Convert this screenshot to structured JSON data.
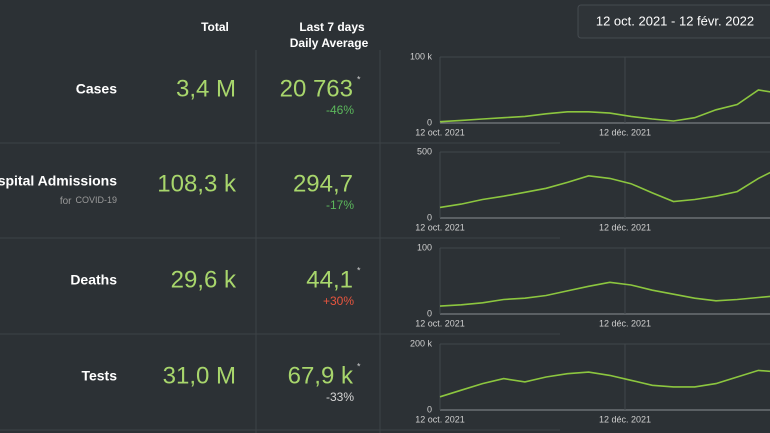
{
  "date_range": "12 oct. 2021 - 12 févr. 2022",
  "header": {
    "total": "Total",
    "last7": "Last 7 days",
    "daily_average": "Daily Average"
  },
  "rows": [
    {
      "label": "Cases",
      "total": "3,4 M",
      "average": "20 763",
      "mark": "*",
      "change": "-46%",
      "change_color": "#5cb85c"
    },
    {
      "label": "Hospital Admissions",
      "sublabel_prefix": "for",
      "sublabel": "COVID-19",
      "total": "108,3 k",
      "average": "294,7",
      "change": "-17%",
      "change_color": "#5cb85c"
    },
    {
      "label": "Deaths",
      "total": "29,6 k",
      "average": "44,1",
      "mark": "*",
      "change": "+30%",
      "change_color": "#e8553e"
    },
    {
      "label": "Tests",
      "total": "31,0 M",
      "average": "67,9 k",
      "mark": "*",
      "change": "-33%",
      "change_color": "#d6d6d6"
    }
  ],
  "chart_data": [
    {
      "type": "line",
      "color": "#8cc63f",
      "grid": true,
      "x": [
        "2021-10-12",
        "2021-10-19",
        "2021-10-26",
        "2021-11-02",
        "2021-11-09",
        "2021-11-16",
        "2021-11-23",
        "2021-11-30",
        "2021-12-07",
        "2021-12-14",
        "2021-12-21",
        "2021-12-28",
        "2022-01-04",
        "2022-01-11",
        "2022-01-18",
        "2022-01-25",
        "2022-02-01",
        "2022-02-08"
      ],
      "values": [
        2000,
        4000,
        6000,
        8000,
        10000,
        14000,
        17000,
        17000,
        15000,
        10000,
        6000,
        3000,
        8000,
        20000,
        28000,
        50000,
        45000,
        38000
      ],
      "xlim": [
        "2021-10-12",
        "2022-02-12"
      ],
      "xticks": [
        {
          "value": "2021-10-12",
          "label": "12 oct. 2021"
        },
        {
          "value": "2021-12-12",
          "label": "12 déc. 2021"
        }
      ],
      "ylim": [
        0,
        100000
      ],
      "yticks": [
        0,
        {
          "value": 100000,
          "label": "100 k"
        }
      ]
    },
    {
      "type": "line",
      "color": "#8cc63f",
      "grid": true,
      "x": [
        "2021-10-12",
        "2021-10-19",
        "2021-10-26",
        "2021-11-02",
        "2021-11-09",
        "2021-11-16",
        "2021-11-23",
        "2021-11-30",
        "2021-12-07",
        "2021-12-14",
        "2021-12-21",
        "2021-12-28",
        "2022-01-04",
        "2022-01-11",
        "2022-01-18",
        "2022-01-25",
        "2022-02-01",
        "2022-02-08"
      ],
      "values": [
        80,
        105,
        140,
        165,
        195,
        225,
        270,
        320,
        300,
        260,
        190,
        125,
        140,
        165,
        200,
        300,
        380,
        400
      ],
      "xlim": [
        "2021-10-12",
        "2022-02-12"
      ],
      "xticks": [
        {
          "value": "2021-10-12",
          "label": "12 oct. 2021"
        },
        {
          "value": "2021-12-12",
          "label": "12 déc. 2021"
        }
      ],
      "ylim": [
        0,
        500
      ],
      "yticks": [
        0,
        500
      ]
    },
    {
      "type": "line",
      "color": "#8cc63f",
      "grid": true,
      "x": [
        "2021-10-12",
        "2021-10-19",
        "2021-10-26",
        "2021-11-02",
        "2021-11-09",
        "2021-11-16",
        "2021-11-23",
        "2021-11-30",
        "2021-12-07",
        "2021-12-14",
        "2021-12-21",
        "2021-12-28",
        "2022-01-04",
        "2022-01-11",
        "2022-01-18",
        "2022-01-25",
        "2022-02-01",
        "2022-02-08"
      ],
      "values": [
        12,
        14,
        17,
        22,
        24,
        28,
        35,
        42,
        48,
        44,
        36,
        30,
        24,
        20,
        22,
        25,
        28,
        30
      ],
      "xlim": [
        "2021-10-12",
        "2022-02-12"
      ],
      "xticks": [
        {
          "value": "2021-10-12",
          "label": "12 oct. 2021"
        },
        {
          "value": "2021-12-12",
          "label": "12 déc. 2021"
        }
      ],
      "ylim": [
        0,
        100
      ],
      "yticks": [
        0,
        100
      ]
    },
    {
      "type": "line",
      "color": "#8cc63f",
      "grid": true,
      "x": [
        "2021-10-12",
        "2021-10-19",
        "2021-10-26",
        "2021-11-02",
        "2021-11-09",
        "2021-11-16",
        "2021-11-23",
        "2021-11-30",
        "2021-12-07",
        "2021-12-14",
        "2021-12-21",
        "2021-12-28",
        "2022-01-04",
        "2022-01-11",
        "2022-01-18",
        "2022-01-25",
        "2022-02-01",
        "2022-02-08"
      ],
      "values": [
        40000,
        60000,
        80000,
        95000,
        85000,
        100000,
        110000,
        115000,
        105000,
        90000,
        75000,
        70000,
        70000,
        80000,
        100000,
        120000,
        115000,
        110000
      ],
      "xlim": [
        "2021-10-12",
        "2022-02-12"
      ],
      "xticks": [
        {
          "value": "2021-10-12",
          "label": "12 oct. 2021"
        },
        {
          "value": "2021-12-12",
          "label": "12 déc. 2021"
        }
      ],
      "ylim": [
        0,
        200000
      ],
      "yticks": [
        0,
        {
          "value": 200000,
          "label": "200 k"
        }
      ]
    }
  ]
}
